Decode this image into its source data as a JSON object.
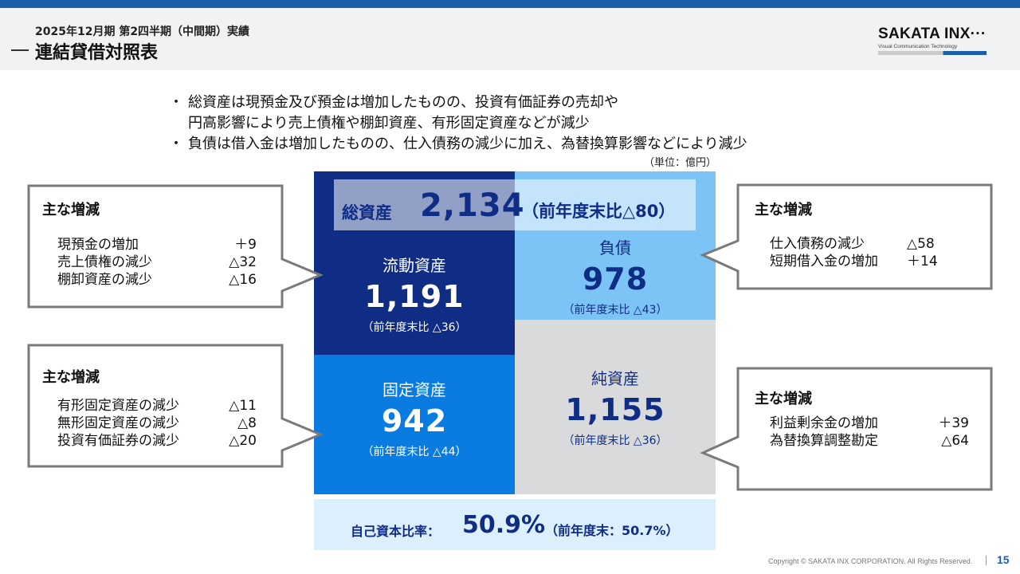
{
  "header": {
    "subtitle": "2025年12月期 第2四半期（中間期）実績",
    "title": "連結貸借対照表",
    "logo_text": "SAKATA INX···",
    "logo_sub": "Visual Communication Technology"
  },
  "bullets": {
    "symbol": "・",
    "lines": [
      "総資産は現預金及び預金は増加したものの、投資有価証券の売却や",
      "円高影響により売上債権や棚卸資産、有形固定資産などが減少",
      "負債は借入金は増加したものの、仕入債務の減少に加え、為替換算影響などにより減少"
    ]
  },
  "unit": "（単位：億円）",
  "balance_sheet": {
    "total": {
      "label": "総資産",
      "value": "2,134",
      "comparison": "（前年度末比△80）"
    },
    "current_assets": {
      "label": "流動資産",
      "value": "1,191",
      "comparison": "（前年度末比 △36）"
    },
    "fixed_assets": {
      "label": "固定資産",
      "value": "942",
      "comparison": "（前年度末比 △44）"
    },
    "liabilities": {
      "label": "負債",
      "value": "978",
      "comparison": "（前年度末比 △43）"
    },
    "net_assets": {
      "label": "純資産",
      "value": "1,155",
      "comparison": "（前年度末比 △36）"
    }
  },
  "equity_ratio": {
    "label": "自己資本比率：",
    "value": "50.9%",
    "comparison": "（前年度末：50.7%）"
  },
  "callouts": {
    "current_assets": {
      "heading": "主な増減",
      "items": [
        {
          "label": "現預金の増加",
          "value": "＋9"
        },
        {
          "label": "売上債権の減少",
          "value": "△32"
        },
        {
          "label": "棚卸資産の減少",
          "value": "△16"
        }
      ]
    },
    "fixed_assets": {
      "heading": "主な増減",
      "items": [
        {
          "label": "有形固定資産の減少",
          "value": "△11"
        },
        {
          "label": "無形固定資産の減少",
          "value": "△8"
        },
        {
          "label": "投資有価証券の減少",
          "value": "△20"
        }
      ]
    },
    "liabilities": {
      "heading": "主な増減",
      "items": [
        {
          "label": "仕入債務の減少",
          "value": "△58"
        },
        {
          "label": "短期借入金の増加",
          "value": "＋14"
        }
      ]
    },
    "net_assets": {
      "heading": "主な増減",
      "items": [
        {
          "label": "利益剰余金の増加",
          "value": "＋39"
        },
        {
          "label": "為替換算調整勘定",
          "value": "△64"
        }
      ]
    }
  },
  "footer": {
    "copyright": "Copyright © SAKATA INX CORPORATION. All Rights Reserved.",
    "page": "15"
  },
  "colors": {
    "top_bar": "#1a5fa8",
    "current_assets": "#0f2d85",
    "fixed_assets": "#0a7be0",
    "liabilities": "#7cc3f6",
    "net_assets": "#d9dadb",
    "equity_band": "#dceffd",
    "callout_border": "#7a7a7a"
  }
}
